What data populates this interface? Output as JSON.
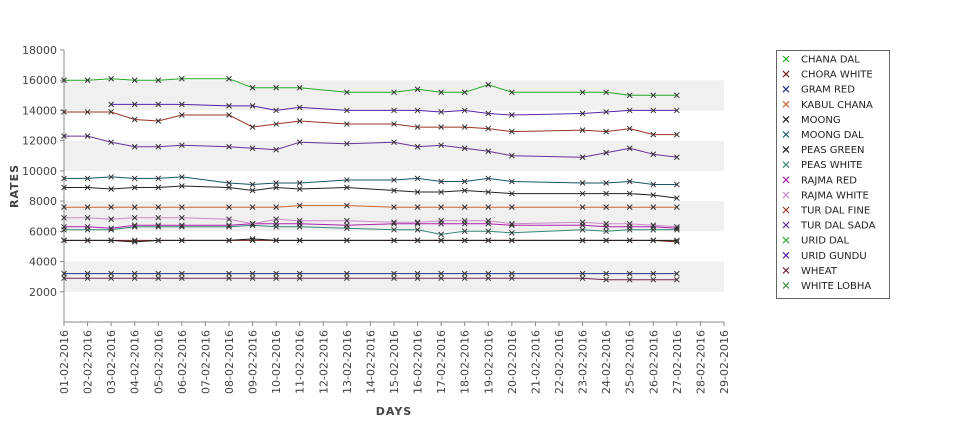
{
  "chart_data": {
    "type": "line",
    "xlabel": "DAYS",
    "ylabel": "RATES",
    "ylim": [
      0,
      18000
    ],
    "yticks": [
      2000,
      4000,
      6000,
      8000,
      10000,
      12000,
      14000,
      16000,
      18000
    ],
    "x_ticks": [
      "01-02-2016",
      "02-02-2016",
      "03-02-2016",
      "04-02-2016",
      "05-02-2016",
      "06-02-2016",
      "07-02-2016",
      "08-02-2016",
      "09-02-2016",
      "10-02-2016",
      "11-02-2016",
      "12-02-2016",
      "13-02-2016",
      "14-02-2016",
      "15-02-2016",
      "16-02-2016",
      "17-02-2016",
      "18-02-2016",
      "19-02-2016",
      "20-02-2016",
      "21-02-2016",
      "22-02-2016",
      "23-02-2016",
      "24-02-2016",
      "25-02-2016",
      "26-02-2016",
      "27-02-2016",
      "28-02-2016",
      "29-02-2016"
    ],
    "x": [
      "01-02-2016",
      "02-02-2016",
      "03-02-2016",
      "04-02-2016",
      "05-02-2016",
      "06-02-2016",
      "08-02-2016",
      "09-02-2016",
      "10-02-2016",
      "11-02-2016",
      "13-02-2016",
      "15-02-2016",
      "16-02-2016",
      "17-02-2016",
      "18-02-2016",
      "19-02-2016",
      "20-02-2016",
      "23-02-2016",
      "24-02-2016",
      "25-02-2016",
      "26-02-2016",
      "27-02-2016"
    ],
    "grid": true,
    "legend_position": "right",
    "series": [
      {
        "name": "CHANA DAL",
        "color": "#22aa22",
        "values": [
          16000,
          16000,
          16100,
          16000,
          16000,
          16100,
          16100,
          15500,
          15500,
          15500,
          15200,
          15200,
          15400,
          15200,
          15200,
          15700,
          15200,
          15200,
          15200,
          15000,
          15000,
          15000
        ]
      },
      {
        "name": "CHORA WHITE",
        "color": "#7a1a1a",
        "values": [
          5400,
          5400,
          5400,
          5400,
          5400,
          5400,
          5400,
          5400,
          5400,
          5400,
          5400,
          5400,
          5400,
          5400,
          5400,
          5400,
          5400,
          5400,
          5400,
          5400,
          5400,
          5300
        ]
      },
      {
        "name": "GRAM RED",
        "color": "#223388",
        "values": [
          3200,
          3200,
          3200,
          3200,
          3200,
          3200,
          3200,
          3200,
          3200,
          3200,
          3200,
          3200,
          3200,
          3200,
          3200,
          3200,
          3200,
          3200,
          3200,
          3200,
          3200,
          3200
        ]
      },
      {
        "name": "KABUL CHANA",
        "color": "#cc6633",
        "values": [
          7600,
          7600,
          7600,
          7600,
          7600,
          7600,
          7600,
          7600,
          7600,
          7700,
          7700,
          7600,
          7600,
          7600,
          7600,
          7600,
          7600,
          7600,
          7600,
          7600,
          7600,
          7600
        ]
      },
      {
        "name": "MOONG",
        "color": "#222222",
        "values": [
          8900,
          8900,
          8800,
          8900,
          8900,
          9000,
          8900,
          8700,
          8900,
          8800,
          8900,
          8700,
          8600,
          8600,
          8700,
          8600,
          8500,
          8500,
          8500,
          8500,
          8400,
          8200
        ]
      },
      {
        "name": "MOONG DAL",
        "color": "#115566",
        "values": [
          9500,
          9500,
          9600,
          9500,
          9500,
          9600,
          9200,
          9100,
          9200,
          9200,
          9400,
          9400,
          9500,
          9300,
          9300,
          9500,
          9300,
          9200,
          9200,
          9300,
          9100,
          9100
        ]
      },
      {
        "name": "PEAS GREEN",
        "color": "#1a1a1a",
        "values": [
          5400,
          5400,
          5400,
          5300,
          5400,
          5400,
          5400,
          5500,
          5400,
          5400,
          5400,
          5400,
          5400,
          5400,
          5400,
          5400,
          5400,
          5400,
          5400,
          5400,
          5400,
          5400
        ]
      },
      {
        "name": "PEAS WHITE",
        "color": "#338877",
        "values": [
          6100,
          6100,
          6100,
          6300,
          6300,
          6300,
          6300,
          6400,
          6300,
          6300,
          6200,
          6100,
          6100,
          5800,
          6000,
          6000,
          5900,
          6100,
          6000,
          6100,
          6100,
          6100
        ]
      },
      {
        "name": "RAJMA RED",
        "color": "#aa22aa",
        "values": [
          6300,
          6300,
          6200,
          6400,
          6400,
          6400,
          6400,
          6500,
          6500,
          6500,
          6400,
          6500,
          6500,
          6500,
          6500,
          6500,
          6400,
          6400,
          6300,
          6300,
          6300,
          6200
        ]
      },
      {
        "name": "RAJMA WHITE",
        "color": "#cc88cc",
        "values": [
          6900,
          6900,
          6800,
          6900,
          6900,
          6900,
          6800,
          6500,
          6800,
          6700,
          6700,
          6600,
          6600,
          6700,
          6700,
          6700,
          6500,
          6600,
          6500,
          6500,
          6400,
          6300
        ]
      },
      {
        "name": "TUR DAL FINE",
        "color": "#993322",
        "values": [
          13900,
          13900,
          13900,
          13400,
          13300,
          13700,
          13700,
          12900,
          13100,
          13300,
          13100,
          13100,
          12900,
          12900,
          12900,
          12800,
          12600,
          12700,
          12600,
          12800,
          12400,
          12400
        ]
      },
      {
        "name": "TUR DAL SADA",
        "color": "#663399",
        "values": [
          12300,
          12300,
          11900,
          11600,
          11600,
          11700,
          11600,
          11500,
          11400,
          11900,
          11800,
          11900,
          11600,
          11700,
          11500,
          11300,
          11000,
          10900,
          11200,
          11500,
          11100,
          10900
        ]
      },
      {
        "name": "URID DAL",
        "color": "#33aa33",
        "values": [
          null,
          null,
          null,
          null,
          null,
          null,
          null,
          null,
          null,
          null,
          null,
          null,
          null,
          null,
          null,
          null,
          null,
          null,
          null,
          null,
          null,
          null
        ]
      },
      {
        "name": "URID GUNDU",
        "color": "#5522aa",
        "values": [
          null,
          null,
          14400,
          14400,
          14400,
          14400,
          14300,
          14300,
          14000,
          14200,
          14000,
          14000,
          14000,
          13900,
          14000,
          13800,
          13700,
          13800,
          13900,
          14000,
          14000,
          14000
        ]
      },
      {
        "name": "WHEAT",
        "color": "#772244",
        "values": [
          2900,
          2900,
          2900,
          2900,
          2900,
          2900,
          2900,
          2900,
          2900,
          2900,
          2900,
          2900,
          2900,
          2900,
          2900,
          2900,
          2900,
          2900,
          2800,
          2800,
          2800,
          2800
        ]
      },
      {
        "name": "WHITE LOBHA",
        "color": "#338833",
        "values": [
          null,
          null,
          null,
          null,
          null,
          null,
          null,
          null,
          null,
          null,
          null,
          null,
          null,
          null,
          null,
          null,
          null,
          null,
          null,
          null,
          null,
          null
        ]
      }
    ]
  }
}
